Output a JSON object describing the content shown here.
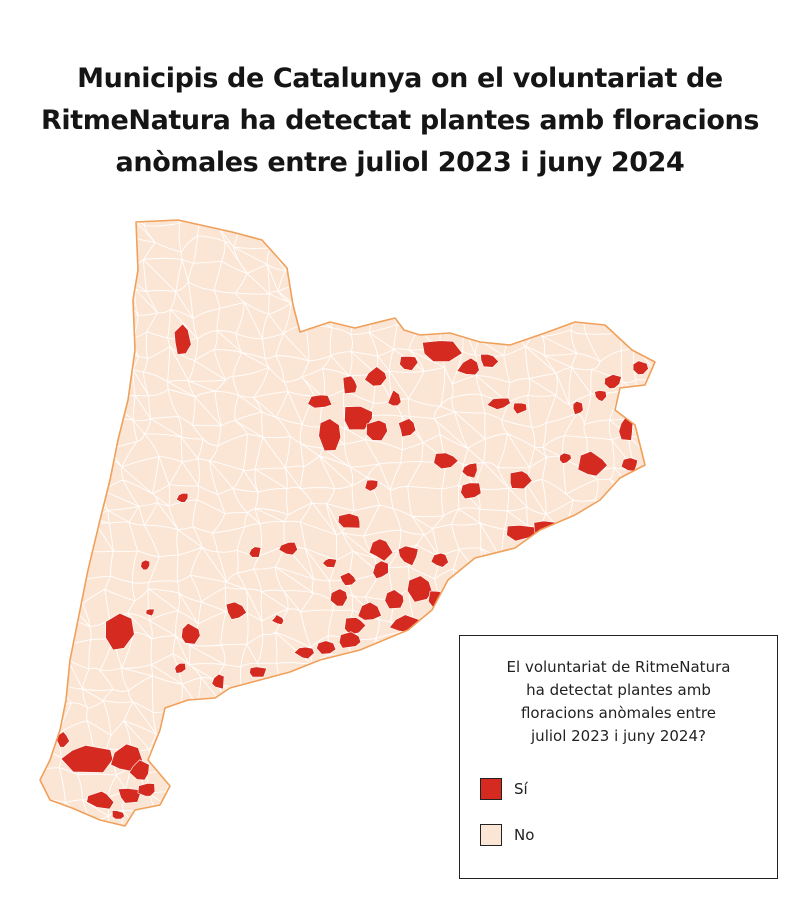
{
  "title": {
    "line1": "Municipis de Catalunya on el voluntariat de",
    "line2": "RitmeNatura ha detectat plantes amb floracions",
    "line3": "anòmales entre juliol 2023 i juny 2024"
  },
  "legend": {
    "title_line1": "El voluntariat de RitmeNatura",
    "title_line2": "ha detectat plantes amb",
    "title_line3": "floracions anòmales entre",
    "title_line4": "juliol 2023 i juny 2024?",
    "items": [
      {
        "label": "Sí",
        "color": "#d42a1f"
      },
      {
        "label": "No",
        "color": "#fbe6d6"
      }
    ]
  },
  "colors": {
    "region_fill": "#fbe6d6",
    "region_border": "#f0a05a",
    "highlight_fill": "#d42a1f",
    "municipal_lines": "#ffffff"
  }
}
